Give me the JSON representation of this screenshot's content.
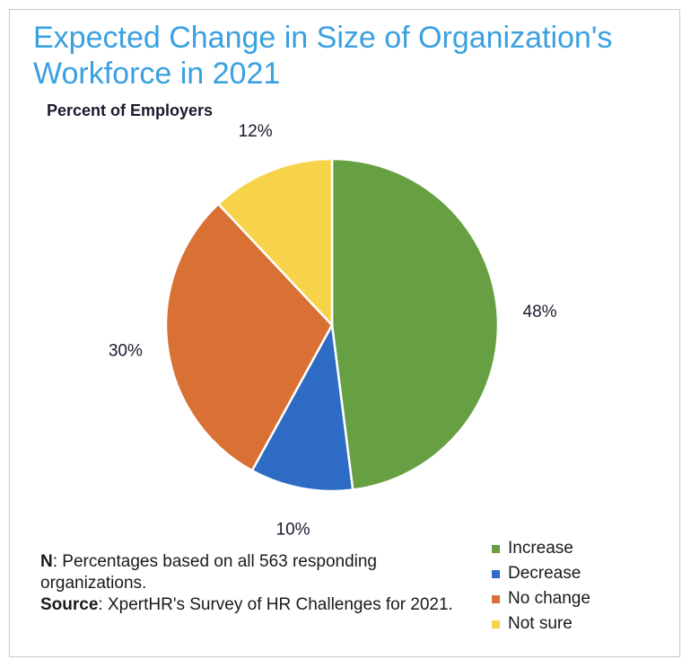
{
  "title": "Expected Change in Size of Organization's Workforce in 2021",
  "subtitle": "Percent of Employers",
  "chart_data": {
    "type": "pie",
    "title": "Expected Change in Size of Organization's Workforce in 2021",
    "subtitle": "Percent of Employers",
    "categories": [
      "Increase",
      "Decrease",
      "No change",
      "Not sure"
    ],
    "values": [
      48,
      10,
      30,
      12
    ],
    "data_labels": [
      "48%",
      "10%",
      "30%",
      "12%"
    ],
    "colors": [
      "#67a043",
      "#2e6bc4",
      "#d87133",
      "#f7d34a"
    ],
    "legend_position": "bottom-right"
  },
  "note": {
    "n_label": "N",
    "n_text": ": Percentages based on all 563 responding organizations.",
    "source_label": "Source",
    "source_text": ": XpertHR's Survey of HR Challenges for 2021."
  }
}
